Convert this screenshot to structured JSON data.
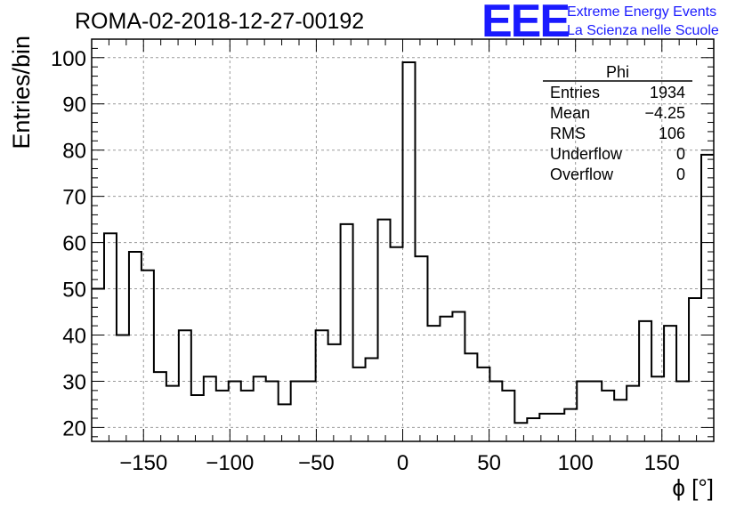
{
  "header": {
    "title": "ROMA-02-2018-12-27-00192",
    "logo": "EEE",
    "brand_line1": "Extreme Energy Events",
    "brand_line2": "La Scienza nelle Scuole",
    "brand_color": "#1a1aff"
  },
  "stats": {
    "name": "Phi",
    "rows": [
      {
        "label": "Entries",
        "value": "1934"
      },
      {
        "label": "Mean",
        "value": "−4.25"
      },
      {
        "label": "RMS",
        "value": "106"
      },
      {
        "label": "Underflow",
        "value": "0"
      },
      {
        "label": "Overflow",
        "value": "0"
      }
    ]
  },
  "chart_data": {
    "type": "histogram",
    "title": "ROMA-02-2018-12-27-00192",
    "xlabel": "ϕ [°]",
    "ylabel": "Entries/bin",
    "xlim": [
      -180,
      180
    ],
    "ylim": [
      17,
      104
    ],
    "bin_width": 7.2,
    "bin_edges_start": -180,
    "values": [
      50,
      62,
      40,
      58,
      54,
      32,
      29,
      41,
      27,
      31,
      28,
      30,
      28,
      31,
      30,
      25,
      30,
      30,
      41,
      38,
      64,
      33,
      35,
      65,
      59,
      99,
      57,
      42,
      44,
      45,
      36,
      33,
      30,
      28,
      21,
      22,
      23,
      23,
      24,
      30,
      30,
      28,
      26,
      29,
      43,
      31,
      42,
      30,
      48,
      79
    ],
    "x_ticks": [
      -150,
      -100,
      -50,
      0,
      50,
      100,
      150
    ],
    "x_tick_labels": [
      "−150",
      "−100",
      "−50",
      "0",
      "50",
      "100",
      "150"
    ],
    "y_ticks": [
      20,
      30,
      40,
      50,
      60,
      70,
      80,
      90,
      100
    ],
    "y_tick_labels": [
      "20",
      "30",
      "40",
      "50",
      "60",
      "70",
      "80",
      "90",
      "100"
    ],
    "grid": true,
    "legend": "stats box top-right"
  }
}
